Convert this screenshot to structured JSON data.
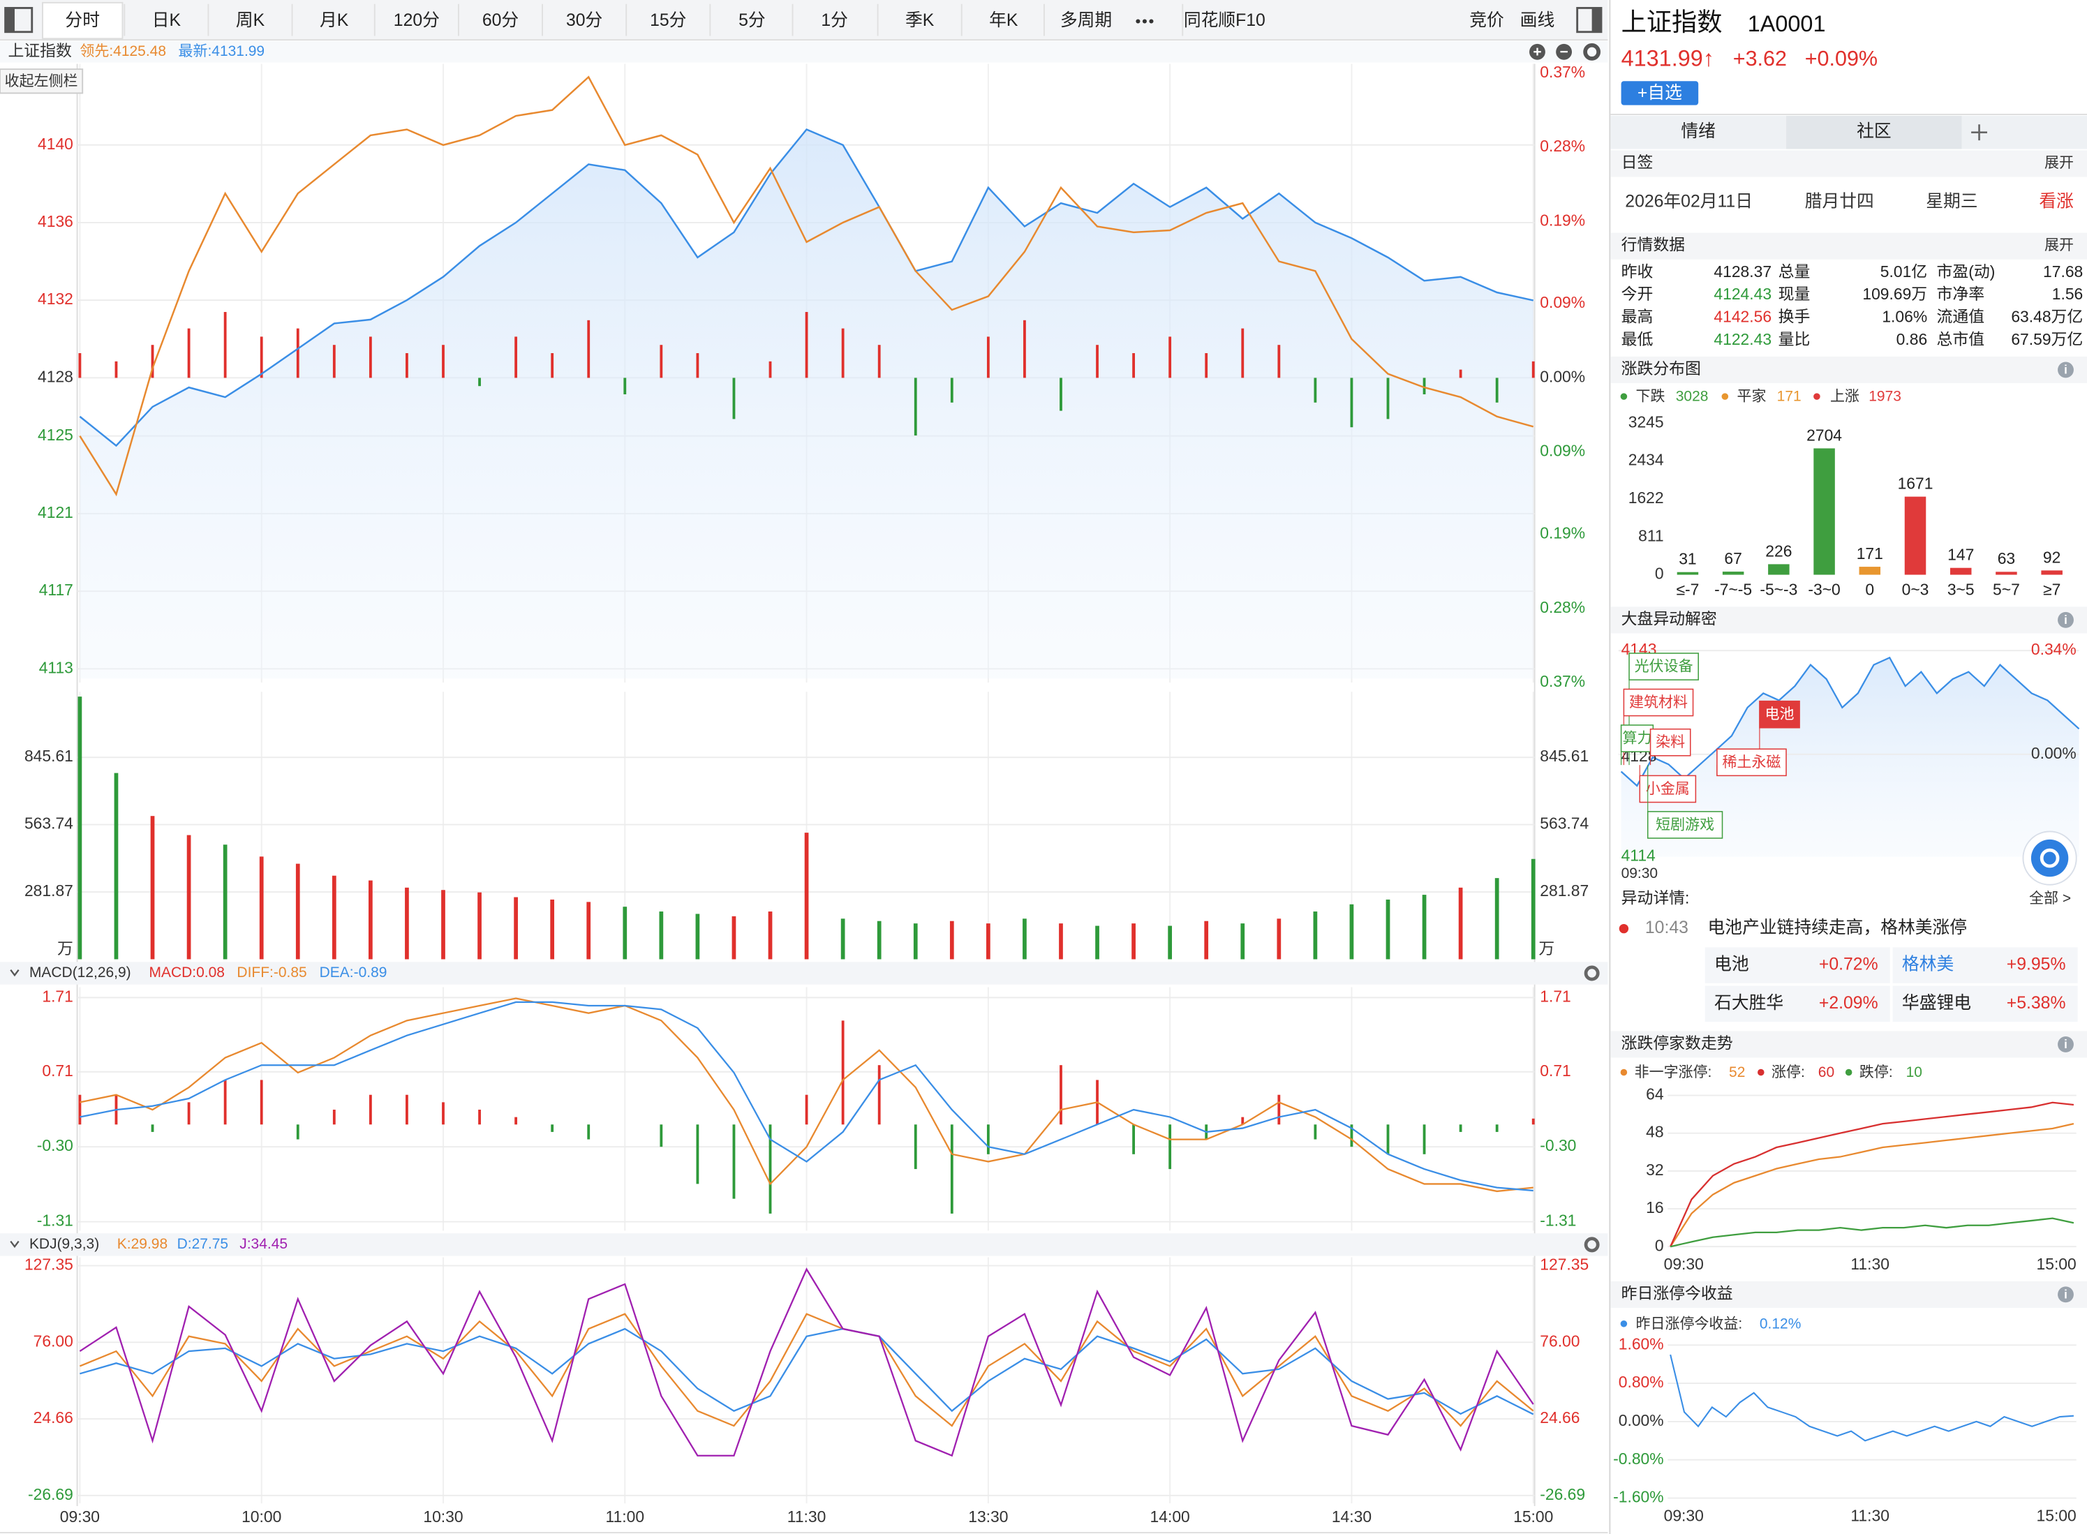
{
  "toolbar": {
    "tabs": [
      "分时",
      "日K",
      "周K",
      "月K",
      "120分",
      "60分",
      "30分",
      "15分",
      "5分",
      "1分",
      "季K",
      "年K",
      "多周期",
      "同花顺F10"
    ],
    "right_tabs": [
      "竞价",
      "画线"
    ]
  },
  "sidebar_tip": "收起左侧栏",
  "main_chart": {
    "name": "上证指数",
    "lead_label": "领先:4125.48",
    "latest_label": "最新:4131.99",
    "ylim": [
      4112.5,
      4143.7
    ],
    "yticks": [
      4140,
      4136,
      4132,
      4128,
      4125,
      4121,
      4117,
      4113
    ],
    "y2lim": [
      -0.37,
      0.37
    ],
    "y2ticks": [
      {
        "value": 0.37,
        "label": "0.37%"
      },
      {
        "value": 0.28,
        "label": "0.28%"
      },
      {
        "value": 0.19,
        "label": "0.19%"
      },
      {
        "value": 0.09,
        "label": "0.09%"
      },
      {
        "value": 0,
        "label": "0.00%"
      },
      {
        "value": -0.09,
        "label": "0.09%"
      },
      {
        "value": -0.19,
        "label": "0.19%"
      },
      {
        "value": -0.28,
        "label": "0.28%"
      },
      {
        "value": -0.37,
        "label": "0.37%"
      }
    ],
    "grid": true,
    "series": [
      {
        "name": "最新",
        "color": "#3a8ee6",
        "values": [
          4126.0,
          4124.5,
          4126.5,
          4127.5,
          4127.0,
          4128.2,
          4129.5,
          4130.8,
          4131.0,
          4132.0,
          4133.2,
          4134.8,
          4136.0,
          4137.5,
          4139.0,
          4138.7,
          4137.0,
          4134.2,
          4135.5,
          4138.5,
          4140.8,
          4140.0,
          4136.8,
          4133.5,
          4134.0,
          4137.8,
          4135.8,
          4137.0,
          4136.5,
          4138.0,
          4136.8,
          4137.8,
          4136.2,
          4137.5,
          4136.0,
          4135.2,
          4134.2,
          4133.0,
          4133.2,
          4132.4,
          4131.99
        ]
      },
      {
        "name": "领先",
        "color": "#e8892f",
        "values": [
          4125.0,
          4122.0,
          4128.5,
          4133.5,
          4137.5,
          4134.5,
          4137.5,
          4139.0,
          4140.5,
          4140.8,
          4140.0,
          4140.5,
          4141.5,
          4141.8,
          4143.5,
          4140.0,
          4140.5,
          4139.5,
          4136.0,
          4138.8,
          4135.0,
          4136.0,
          4136.8,
          4133.5,
          4131.5,
          4132.2,
          4134.5,
          4137.8,
          4135.8,
          4135.5,
          4135.6,
          4136.5,
          4137.0,
          4134.0,
          4133.5,
          4130.0,
          4128.2,
          4127.5,
          4127.0,
          4126.0,
          4125.48
        ]
      }
    ],
    "strength": [
      0.03,
      0.02,
      0.04,
      0.06,
      0.08,
      0.05,
      0.06,
      0.04,
      0.05,
      0.03,
      0.04,
      -0.01,
      0.05,
      0.03,
      0.07,
      -0.02,
      0.04,
      0.03,
      -0.05,
      0.02,
      0.08,
      0.06,
      0.04,
      -0.07,
      -0.03,
      0.05,
      0.07,
      -0.04,
      0.04,
      0.03,
      0.05,
      0.03,
      0.06,
      0.04,
      -0.03,
      -0.06,
      -0.05,
      -0.02,
      0.01,
      -0.03,
      0.02
    ]
  },
  "volume_chart": {
    "ylim": [
      0,
      1120
    ],
    "yticks": [
      845.61,
      563.74,
      281.87
    ],
    "unit": "万",
    "values": [
      1100,
      780,
      600,
      520,
      480,
      430,
      400,
      350,
      330,
      300,
      290,
      280,
      260,
      250,
      240,
      220,
      200,
      190,
      180,
      200,
      530,
      170,
      160,
      150,
      160,
      150,
      170,
      150,
      140,
      150,
      140,
      160,
      150,
      170,
      200,
      230,
      250,
      270,
      300,
      340,
      420
    ]
  },
  "macd_chart": {
    "title": "MACD(12,26,9)",
    "macd_label": "MACD:0.08",
    "diff_label": "DIFF:-0.85",
    "dea_label": "DEA:-0.89",
    "ylim": [
      -1.43,
      1.85
    ],
    "yticks": [
      1.71,
      0.71,
      {
        "value": -0.3,
        "label": "-0.30"
      },
      -1.31
    ],
    "histogram": [
      0.4,
      0.4,
      -0.1,
      0.3,
      0.6,
      0.6,
      -0.2,
      0.2,
      0.4,
      0.4,
      0.3,
      0.2,
      0.1,
      -0.1,
      -0.2,
      0.0,
      -0.3,
      -0.8,
      -1.0,
      -1.2,
      0.4,
      1.4,
      0.8,
      -0.6,
      -1.2,
      -0.4,
      0.0,
      0.8,
      0.6,
      -0.4,
      -0.6,
      -0.2,
      0.1,
      0.4,
      -0.2,
      -0.3,
      -0.4,
      -0.4,
      -0.1,
      -0.1,
      0.08
    ],
    "series": [
      {
        "name": "DIFF",
        "color": "#e8892f",
        "values": [
          0.3,
          0.4,
          0.2,
          0.5,
          0.9,
          1.1,
          0.7,
          0.9,
          1.2,
          1.4,
          1.5,
          1.6,
          1.7,
          1.6,
          1.5,
          1.6,
          1.4,
          0.9,
          0.2,
          -0.8,
          -0.3,
          0.6,
          1.0,
          0.5,
          -0.4,
          -0.5,
          -0.4,
          0.2,
          0.3,
          0.0,
          -0.2,
          -0.2,
          0.0,
          0.3,
          0.1,
          -0.2,
          -0.6,
          -0.8,
          -0.8,
          -0.9,
          -0.85
        ]
      },
      {
        "name": "DEA",
        "color": "#3a8ee6",
        "values": [
          0.1,
          0.2,
          0.25,
          0.35,
          0.6,
          0.8,
          0.8,
          0.8,
          1.0,
          1.2,
          1.35,
          1.5,
          1.65,
          1.65,
          1.6,
          1.6,
          1.55,
          1.3,
          0.7,
          -0.2,
          -0.5,
          -0.1,
          0.6,
          0.8,
          0.2,
          -0.3,
          -0.4,
          -0.2,
          0.0,
          0.2,
          0.1,
          -0.1,
          -0.05,
          0.1,
          0.2,
          -0.05,
          -0.4,
          -0.6,
          -0.75,
          -0.85,
          -0.89
        ]
      }
    ]
  },
  "kdj_chart": {
    "title": "KDJ(9,3,3)",
    "k_label": "K:29.98",
    "d_label": "D:27.75",
    "j_label": "J:34.45",
    "ylim": [
      -32,
      133
    ],
    "yticks": [
      127.35,
      {
        "value": 76,
        "label": "76.00"
      },
      24.66,
      -26.69
    ],
    "series": [
      {
        "name": "K",
        "color": "#e8892f",
        "values": [
          60,
          70,
          40,
          80,
          75,
          50,
          85,
          60,
          70,
          80,
          65,
          90,
          70,
          40,
          85,
          95,
          60,
          30,
          20,
          50,
          95,
          85,
          80,
          40,
          20,
          60,
          75,
          50,
          90,
          70,
          60,
          85,
          40,
          60,
          80,
          40,
          30,
          45,
          20,
          50,
          29.98
        ]
      },
      {
        "name": "D",
        "color": "#3a8ee6",
        "values": [
          55,
          62,
          55,
          70,
          72,
          60,
          75,
          65,
          68,
          75,
          70,
          80,
          72,
          55,
          75,
          85,
          70,
          45,
          30,
          40,
          80,
          85,
          80,
          55,
          30,
          50,
          65,
          58,
          80,
          72,
          63,
          78,
          55,
          58,
          72,
          50,
          38,
          42,
          28,
          40,
          27.75
        ]
      },
      {
        "name": "J",
        "color": "#a020b0",
        "values": [
          70,
          86,
          10,
          100,
          81,
          30,
          105,
          50,
          74,
          90,
          55,
          110,
          66,
          10,
          105,
          115,
          40,
          0,
          0,
          70,
          125,
          85,
          80,
          10,
          0,
          80,
          95,
          34,
          110,
          66,
          54,
          99,
          10,
          64,
          96,
          20,
          14,
          51,
          4,
          70,
          34.45
        ]
      }
    ]
  },
  "time_labels": [
    "09:30",
    "10:00",
    "10:30",
    "11:00",
    "11:30",
    "13:30",
    "14:00",
    "14:30",
    "15:00"
  ],
  "quote": {
    "name": "上证指数",
    "code": "1A0001",
    "price": "4131.99↑",
    "change": "+3.62",
    "change_pct": "+0.09%",
    "watch_button": "+自选"
  },
  "tabs": [
    "情绪",
    "社区"
  ],
  "daily": {
    "title": "日签",
    "expand": "展开",
    "date": "2026年02月11日",
    "lunar": "腊月廿四",
    "weekday": "星期三",
    "mood": "看涨"
  },
  "market": {
    "title": "行情数据",
    "expand": "展开",
    "rows": [
      [
        "昨收",
        "4128.37",
        "总量",
        "5.01亿",
        "市盈(动)",
        "17.68"
      ],
      [
        "今开",
        "4124.43",
        "现量",
        "109.69万",
        "市净率",
        "1.56"
      ],
      [
        "最高",
        "4142.56",
        "换手",
        "1.06%",
        "流通值",
        "63.48万亿"
      ],
      [
        "最低",
        "4122.43",
        "量比",
        "0.86",
        "总市值",
        "67.59万亿"
      ]
    ]
  },
  "distribution": {
    "title": "涨跌分布图",
    "legend": [
      {
        "name": "下跌",
        "value": 3028,
        "color": "#3f9e3f"
      },
      {
        "name": "平家",
        "value": 171,
        "color": "#e8962f"
      },
      {
        "name": "上涨",
        "value": 1973,
        "color": "#e03a3a"
      }
    ],
    "categories": [
      "≤-7",
      "-7~-5",
      "-5~-3",
      "-3~0",
      "0",
      "0~3",
      "3~5",
      "5~7",
      "≥7"
    ],
    "values": [
      31,
      67,
      226,
      2704,
      171,
      1671,
      147,
      63,
      92
    ],
    "colors": [
      "#3f9e3f",
      "#3f9e3f",
      "#3f9e3f",
      "#3f9e3f",
      "#e8962f",
      "#e03a3a",
      "#e03a3a",
      "#e03a3a",
      "#e03a3a"
    ],
    "ylim": [
      0,
      3245
    ],
    "yticks": [
      0,
      811,
      1622,
      2434,
      3245
    ]
  },
  "anomaly": {
    "title": "大盘异动解密",
    "ylim": [
      4114,
      4143
    ],
    "yticks": [
      4143,
      4128,
      4114
    ],
    "y2lim": [
      -0.336,
      0.34
    ],
    "y2ticks": [
      {
        "value": 0.34,
        "label": "0.34%"
      },
      {
        "value": 0,
        "label": "0.00%"
      }
    ],
    "x_label": "09:30",
    "values": [
      4126,
      4124,
      4128,
      4127,
      4125,
      4127,
      4129,
      4131,
      4135,
      4137,
      4136,
      4138,
      4141,
      4139,
      4135,
      4137,
      4141,
      4142,
      4138,
      4140,
      4137,
      4139,
      4140,
      4138,
      4141,
      4139,
      4137,
      4136,
      4134,
      4132
    ],
    "tags": [
      {
        "label": "光伏设备",
        "color": "#3f9e3f"
      },
      {
        "label": "建筑材料",
        "color": "#e03a3a"
      },
      {
        "label": "算力",
        "color": "#3f9e3f"
      },
      {
        "label": "染料",
        "color": "#e03a3a"
      },
      {
        "label": "电池",
        "color": "#e03a3a"
      },
      {
        "label": "稀土永磁",
        "color": "#e03a3a"
      },
      {
        "label": "小金属",
        "color": "#e03a3a"
      },
      {
        "label": "短剧游戏",
        "color": "#3f9e3f"
      }
    ]
  },
  "detail": {
    "title": "异动详情:",
    "all": "全部 >",
    "time": "10:43",
    "text": "电池产业链持续走高，格林美涨停",
    "stocks": [
      [
        "电池",
        "+0.72%"
      ],
      [
        "格林美",
        "+9.95%"
      ],
      [
        "石大胜华",
        "+2.09%"
      ],
      [
        "华盛锂电",
        "+5.38%"
      ]
    ]
  },
  "limit_chart": {
    "title": "涨跌停家数走势",
    "ylim": [
      0,
      67
    ],
    "yticks": [
      0,
      16,
      32,
      48,
      64
    ],
    "x_labels": [
      "09:30",
      "11:30",
      "15:00"
    ],
    "series": [
      {
        "name": "非一字涨停:",
        "value": 52,
        "color": "#e8892f",
        "values": [
          0,
          14,
          22,
          27,
          30,
          33,
          35,
          37,
          38,
          40,
          42,
          43,
          44,
          45,
          46,
          47,
          48,
          49,
          50,
          52
        ]
      },
      {
        "name": "涨停:",
        "value": 60,
        "color": "#d83030",
        "values": [
          0,
          20,
          30,
          35,
          38,
          42,
          44,
          46,
          48,
          50,
          52,
          53,
          54,
          55,
          56,
          57,
          58,
          59,
          61,
          60
        ]
      },
      {
        "name": "跌停:",
        "value": 10,
        "color": "#3f9e3f",
        "values": [
          0,
          2,
          4,
          5,
          6,
          6,
          7,
          7,
          8,
          7,
          8,
          8,
          9,
          8,
          9,
          9,
          10,
          11,
          12,
          10
        ]
      }
    ]
  },
  "yesterday_chart": {
    "title": "昨日涨停今收益",
    "legend_name": "昨日涨停今收益:",
    "legend_value": "0.12%",
    "color": "#3a8ee6",
    "ylim": [
      -1.6,
      1.6
    ],
    "yticks": [
      {
        "value": 1.6,
        "label": "1.60%"
      },
      {
        "value": 0.8,
        "label": "0.80%"
      },
      {
        "value": 0,
        "label": "0.00%"
      },
      {
        "value": -0.8,
        "label": "-0.80%"
      },
      {
        "value": -1.6,
        "label": "-1.60%"
      }
    ],
    "x_labels": [
      "09:30",
      "11:30",
      "15:00"
    ],
    "values": [
      1.4,
      0.2,
      -0.1,
      0.3,
      0.1,
      0.4,
      0.6,
      0.3,
      0.2,
      0.1,
      -0.1,
      -0.2,
      -0.3,
      -0.2,
      -0.4,
      -0.3,
      -0.2,
      -0.3,
      -0.2,
      -0.1,
      -0.2,
      -0.1,
      0.0,
      -0.1,
      0.1,
      0.0,
      -0.1,
      0.0,
      0.1,
      0.12
    ]
  }
}
